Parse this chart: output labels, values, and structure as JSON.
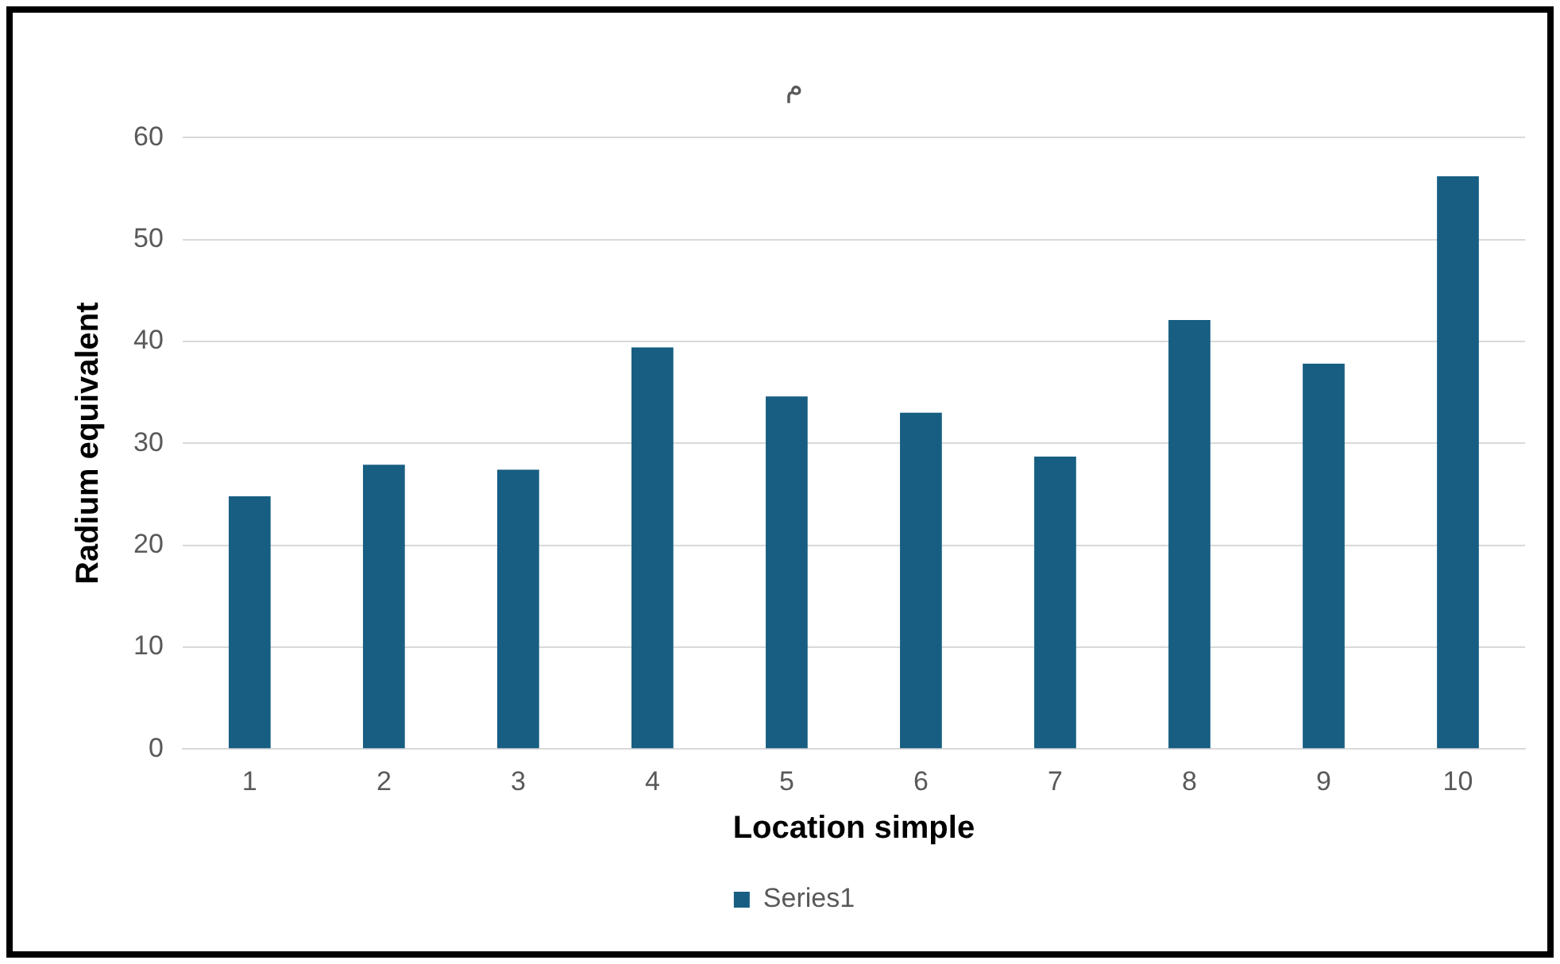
{
  "chart_data": {
    "type": "bar",
    "title": "م",
    "xlabel": "Location simple",
    "ylabel": "Radium equivalent",
    "categories": [
      "1",
      "2",
      "3",
      "4",
      "5",
      "6",
      "7",
      "8",
      "9",
      "10"
    ],
    "series": [
      {
        "name": "Series1",
        "color": "#175e82",
        "values": [
          24.8,
          27.9,
          27.4,
          39.4,
          34.6,
          33.0,
          28.7,
          42.1,
          37.8,
          56.2
        ]
      }
    ],
    "ylim": [
      0,
      60
    ],
    "yticks": [
      0,
      10,
      20,
      30,
      40,
      50,
      60
    ],
    "grid": "y",
    "legend": "bottom"
  }
}
